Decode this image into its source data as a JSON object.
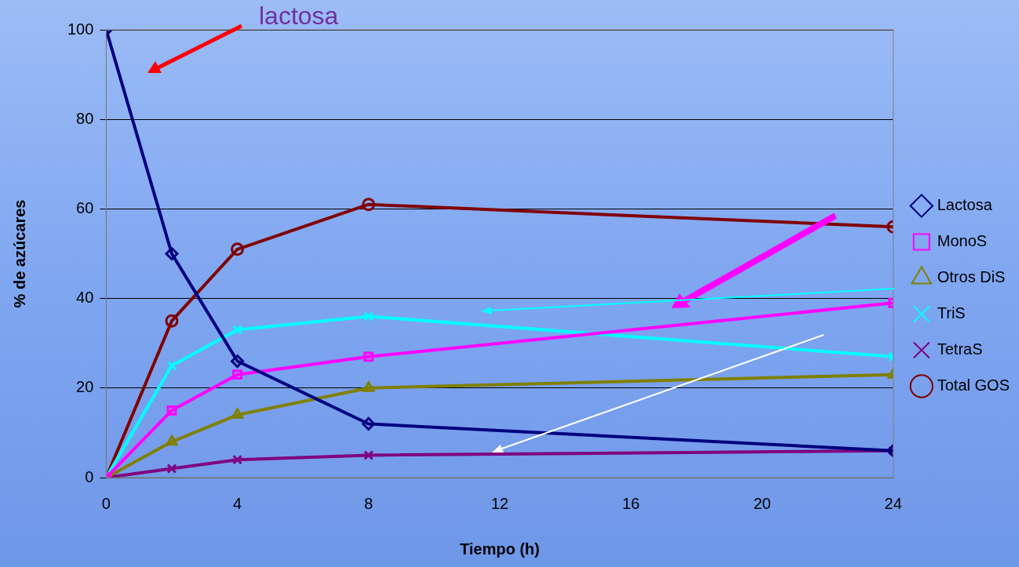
{
  "chart_data": {
    "type": "line",
    "xlabel": "Tiempo (h)",
    "ylabel": "% de azúcares",
    "annotations": [
      "lactosa"
    ],
    "x": [
      0,
      2,
      4,
      8,
      24
    ],
    "xlim": [
      0,
      24
    ],
    "xticks": [
      0,
      4,
      8,
      12,
      16,
      20,
      24
    ],
    "ylim": [
      0,
      100
    ],
    "yticks": [
      0,
      20,
      40,
      60,
      80,
      100
    ],
    "grid": "y",
    "legend": "right",
    "series": [
      {
        "name": "Lactosa",
        "color": "#000080",
        "marker": "diamond",
        "values": [
          100,
          50,
          26,
          12,
          6
        ]
      },
      {
        "name": "MonoS",
        "color": "#ff00ff",
        "marker": "square",
        "values": [
          0,
          15,
          23,
          27,
          39
        ]
      },
      {
        "name": "Otros DiS",
        "color": "#808000",
        "marker": "triangle",
        "values": [
          0,
          8,
          14,
          20,
          23
        ]
      },
      {
        "name": "TriS",
        "color": "#00ffff",
        "marker": "cross",
        "values": [
          0,
          25,
          33,
          36,
          27
        ]
      },
      {
        "name": "TetraS",
        "color": "#800080",
        "marker": "cross",
        "values": [
          0,
          2,
          4,
          5,
          6
        ]
      },
      {
        "name": "Total GOS",
        "color": "#800000",
        "marker": "circle",
        "values": [
          0,
          35,
          51,
          61,
          56
        ]
      }
    ]
  }
}
